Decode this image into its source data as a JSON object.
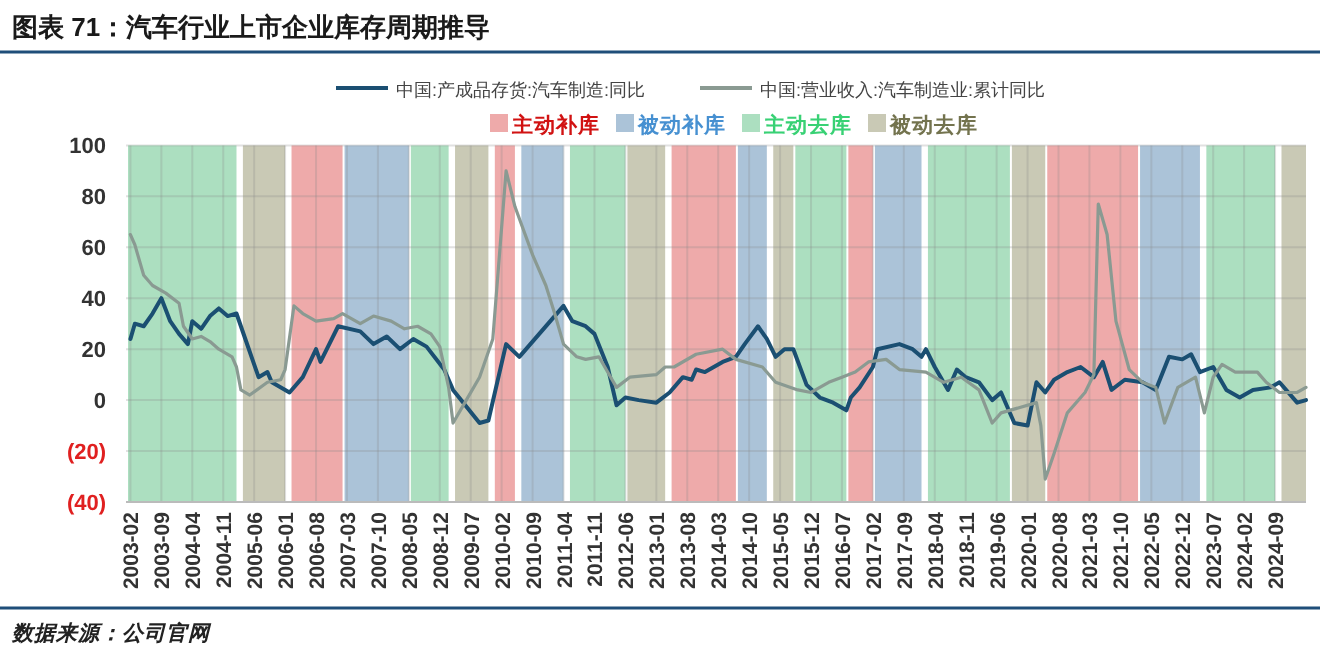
{
  "chart_data": {
    "type": "line",
    "title": "图表 71：汽车行业上市企业库存周期推导",
    "annotations": [
      "数据来源：公司官网"
    ],
    "xlim": [
      "2003-01",
      "2025-04"
    ],
    "xticks": [
      "2003-02",
      "2003-09",
      "2004-04",
      "2004-11",
      "2005-06",
      "2006-01",
      "2006-08",
      "2007-03",
      "2007-10",
      "2008-05",
      "2008-12",
      "2009-07",
      "2010-02",
      "2010-09",
      "2011-04",
      "2011-11",
      "2012-06",
      "2013-01",
      "2013-08",
      "2014-03",
      "2014-10",
      "2015-05",
      "2015-12",
      "2016-07",
      "2017-02",
      "2017-09",
      "2018-04",
      "2018-11",
      "2019-06",
      "2020-01",
      "2020-08",
      "2021-03",
      "2021-10",
      "2022-05",
      "2022-12",
      "2023-07",
      "2024-02",
      "2024-09"
    ],
    "ylim": [
      -40,
      100
    ],
    "yticks": [
      {
        "value": -40,
        "label": "(40)"
      },
      {
        "value": -20,
        "label": "(20)"
      },
      0,
      20,
      40,
      60,
      80,
      100
    ],
    "grid": true,
    "legend": "top",
    "line_style": "solid",
    "marker": "none",
    "bands": [
      {
        "axis": "x",
        "from": "2003-01",
        "to": "2005-02",
        "color": "#acdfc0"
      },
      {
        "axis": "x",
        "from": "2005-03",
        "to": "2006-01",
        "color": "#c9c9b5"
      },
      {
        "axis": "x",
        "from": "2006-02",
        "to": "2007-02",
        "color": "#eeaaaa",
        "label": "主动补库"
      },
      {
        "axis": "x",
        "from": "2007-02",
        "to": "2008-05",
        "color": "#abc3d8",
        "label": "被动补库"
      },
      {
        "axis": "x",
        "from": "2008-05",
        "to": "2009-02",
        "color": "#acdfc0",
        "label": "主动去库"
      },
      {
        "axis": "x",
        "from": "2009-03",
        "to": "2009-11",
        "color": "#c9c9b5",
        "label": "被动去库"
      },
      {
        "axis": "x",
        "from": "2009-12",
        "to": "2010-05",
        "color": "#eeaaaa"
      },
      {
        "axis": "x",
        "from": "2010-06",
        "to": "2011-04",
        "color": "#abc3d8"
      },
      {
        "axis": "x",
        "from": "2011-05",
        "to": "2012-06",
        "color": "#acdfc0"
      },
      {
        "axis": "x",
        "from": "2012-06",
        "to": "2013-03",
        "color": "#c9c9b5"
      },
      {
        "axis": "x",
        "from": "2013-04",
        "to": "2014-07",
        "color": "#eeaaaa"
      },
      {
        "axis": "x",
        "from": "2014-07",
        "to": "2015-02",
        "color": "#abc3d8"
      },
      {
        "axis": "x",
        "from": "2015-03",
        "to": "2015-08",
        "color": "#c9c9b5"
      },
      {
        "axis": "x",
        "from": "2015-08",
        "to": "2016-08",
        "color": "#acdfc0"
      },
      {
        "axis": "x",
        "from": "2016-08",
        "to": "2017-02",
        "color": "#eeaaaa"
      },
      {
        "axis": "x",
        "from": "2017-02",
        "to": "2018-01",
        "color": "#abc3d8"
      },
      {
        "axis": "x",
        "from": "2018-02",
        "to": "2019-09",
        "color": "#acdfc0"
      },
      {
        "axis": "x",
        "from": "2019-09",
        "to": "2020-05",
        "color": "#c9c9b5"
      },
      {
        "axis": "x",
        "from": "2020-05",
        "to": "2022-02",
        "color": "#eeaaaa"
      },
      {
        "axis": "x",
        "from": "2022-02",
        "to": "2023-04",
        "color": "#abc3d8"
      },
      {
        "axis": "x",
        "from": "2023-05",
        "to": "2024-09",
        "color": "#acdfc0"
      },
      {
        "axis": "x",
        "from": "2024-10",
        "to": "2025-04",
        "color": "#c9c9b5"
      }
    ],
    "series": [
      {
        "name": "中国:产成品存货:汽车制造:同比",
        "color": "#1b4f72",
        "x": [
          "2003-02",
          "2003-03",
          "2003-05",
          "2003-07",
          "2003-09",
          "2003-11",
          "2004-01",
          "2004-03",
          "2004-04",
          "2004-06",
          "2004-08",
          "2004-10",
          "2004-12",
          "2005-02",
          "2005-04",
          "2005-07",
          "2005-09",
          "2005-10",
          "2006-02",
          "2006-05",
          "2006-08",
          "2006-09",
          "2007-01",
          "2007-06",
          "2007-09",
          "2007-12",
          "2008-03",
          "2008-06",
          "2008-09",
          "2009-01",
          "2009-03",
          "2009-09",
          "2009-11",
          "2010-03",
          "2010-06",
          "2011-04",
          "2011-06",
          "2011-09",
          "2011-11",
          "2012-02",
          "2012-04",
          "2012-06",
          "2012-09",
          "2013-01",
          "2013-04",
          "2013-07",
          "2013-09",
          "2013-10",
          "2013-12",
          "2014-04",
          "2014-07",
          "2014-09",
          "2014-12",
          "2015-02",
          "2015-04",
          "2015-06",
          "2015-08",
          "2015-11",
          "2016-02",
          "2016-05",
          "2016-08",
          "2016-09",
          "2016-11",
          "2017-02",
          "2017-03",
          "2017-08",
          "2017-11",
          "2018-01",
          "2018-02",
          "2018-04",
          "2018-07",
          "2018-09",
          "2018-11",
          "2019-02",
          "2019-05",
          "2019-07",
          "2019-10",
          "2020-01",
          "2020-03",
          "2020-05",
          "2020-07",
          "2020-10",
          "2021-01",
          "2021-04",
          "2021-06",
          "2021-08",
          "2021-11",
          "2022-03",
          "2022-06",
          "2022-09",
          "2022-12",
          "2023-02",
          "2023-04",
          "2023-07",
          "2023-10",
          "2024-01",
          "2024-04",
          "2024-08",
          "2024-10",
          "2025-02",
          "2025-04"
        ],
        "values": [
          24,
          30,
          29,
          34,
          40,
          31,
          26,
          22,
          31,
          28,
          33,
          36,
          33,
          34,
          24,
          9,
          11,
          7,
          3,
          9,
          20,
          15,
          29,
          27,
          22,
          25,
          20,
          24,
          21,
          12,
          4,
          -9,
          -8,
          22,
          17,
          37,
          31,
          29,
          26,
          13,
          -2,
          1,
          0,
          -1,
          3,
          9,
          8,
          12,
          11,
          15,
          17,
          22,
          29,
          24,
          17,
          20,
          20,
          6,
          1,
          -1,
          -4,
          1,
          5,
          13,
          20,
          22,
          20,
          17,
          20,
          13,
          4,
          12,
          9,
          7,
          0,
          3,
          -9,
          -10,
          7,
          3,
          8,
          11,
          13,
          9,
          15,
          4,
          8,
          7,
          4,
          17,
          16,
          18,
          11,
          13,
          4,
          1,
          4,
          5,
          7,
          -1,
          0
        ]
      },
      {
        "name": "中国:营业收入:汽车制造业:累计同比",
        "color": "#8a9a92",
        "x": [
          "2003-02",
          "2003-03",
          "2003-05",
          "2003-07",
          "2003-10",
          "2004-01",
          "2004-02",
          "2004-04",
          "2004-06",
          "2004-08",
          "2004-10",
          "2005-01",
          "2005-02",
          "2005-03",
          "2005-05",
          "2005-09",
          "2005-12",
          "2006-01",
          "2006-03",
          "2006-05",
          "2006-08",
          "2006-12",
          "2007-02",
          "2007-06",
          "2007-09",
          "2008-01",
          "2008-04",
          "2008-07",
          "2008-10",
          "2008-12",
          "2009-02",
          "2009-03",
          "2009-06",
          "2009-09",
          "2009-12",
          "2010-03",
          "2010-05",
          "2010-09",
          "2010-12",
          "2011-02",
          "2011-04",
          "2011-07",
          "2011-09",
          "2011-12",
          "2012-03",
          "2012-04",
          "2012-07",
          "2013-01",
          "2013-03",
          "2013-05",
          "2013-10",
          "2014-04",
          "2014-07",
          "2015-01",
          "2015-04",
          "2015-09",
          "2015-12",
          "2016-04",
          "2016-07",
          "2016-10",
          "2017-01",
          "2017-05",
          "2017-08",
          "2018-02",
          "2018-06",
          "2018-10",
          "2019-02",
          "2019-05",
          "2019-07",
          "2020-03",
          "2020-04",
          "2020-05",
          "2020-07",
          "2020-10",
          "2021-02",
          "2021-04",
          "2021-05",
          "2021-07",
          "2021-09",
          "2021-12",
          "2022-03",
          "2022-06",
          "2022-08",
          "2022-11",
          "2023-03",
          "2023-05",
          "2023-07",
          "2023-09",
          "2023-12",
          "2024-05",
          "2024-07",
          "2024-10",
          "2025-02",
          "2025-04"
        ],
        "values": [
          65,
          61,
          49,
          45,
          42,
          38,
          29,
          24,
          25,
          23,
          20,
          17,
          13,
          4,
          2,
          7,
          8,
          12,
          37,
          34,
          31,
          32,
          34,
          30,
          33,
          31,
          28,
          29,
          26,
          21,
          5,
          -9,
          0,
          9,
          24,
          90,
          76,
          57,
          45,
          34,
          22,
          17,
          16,
          17,
          8,
          5,
          9,
          10,
          13,
          13,
          18,
          20,
          16,
          13,
          7,
          4,
          3,
          7,
          9,
          11,
          15,
          16,
          12,
          11,
          7,
          9,
          4,
          -9,
          -5,
          -1,
          -10,
          -31,
          -21,
          -5,
          3,
          10,
          77,
          65,
          31,
          12,
          7,
          5,
          -9,
          5,
          9,
          -5,
          9,
          14,
          11,
          11,
          7,
          3,
          3,
          5
        ]
      }
    ]
  }
}
